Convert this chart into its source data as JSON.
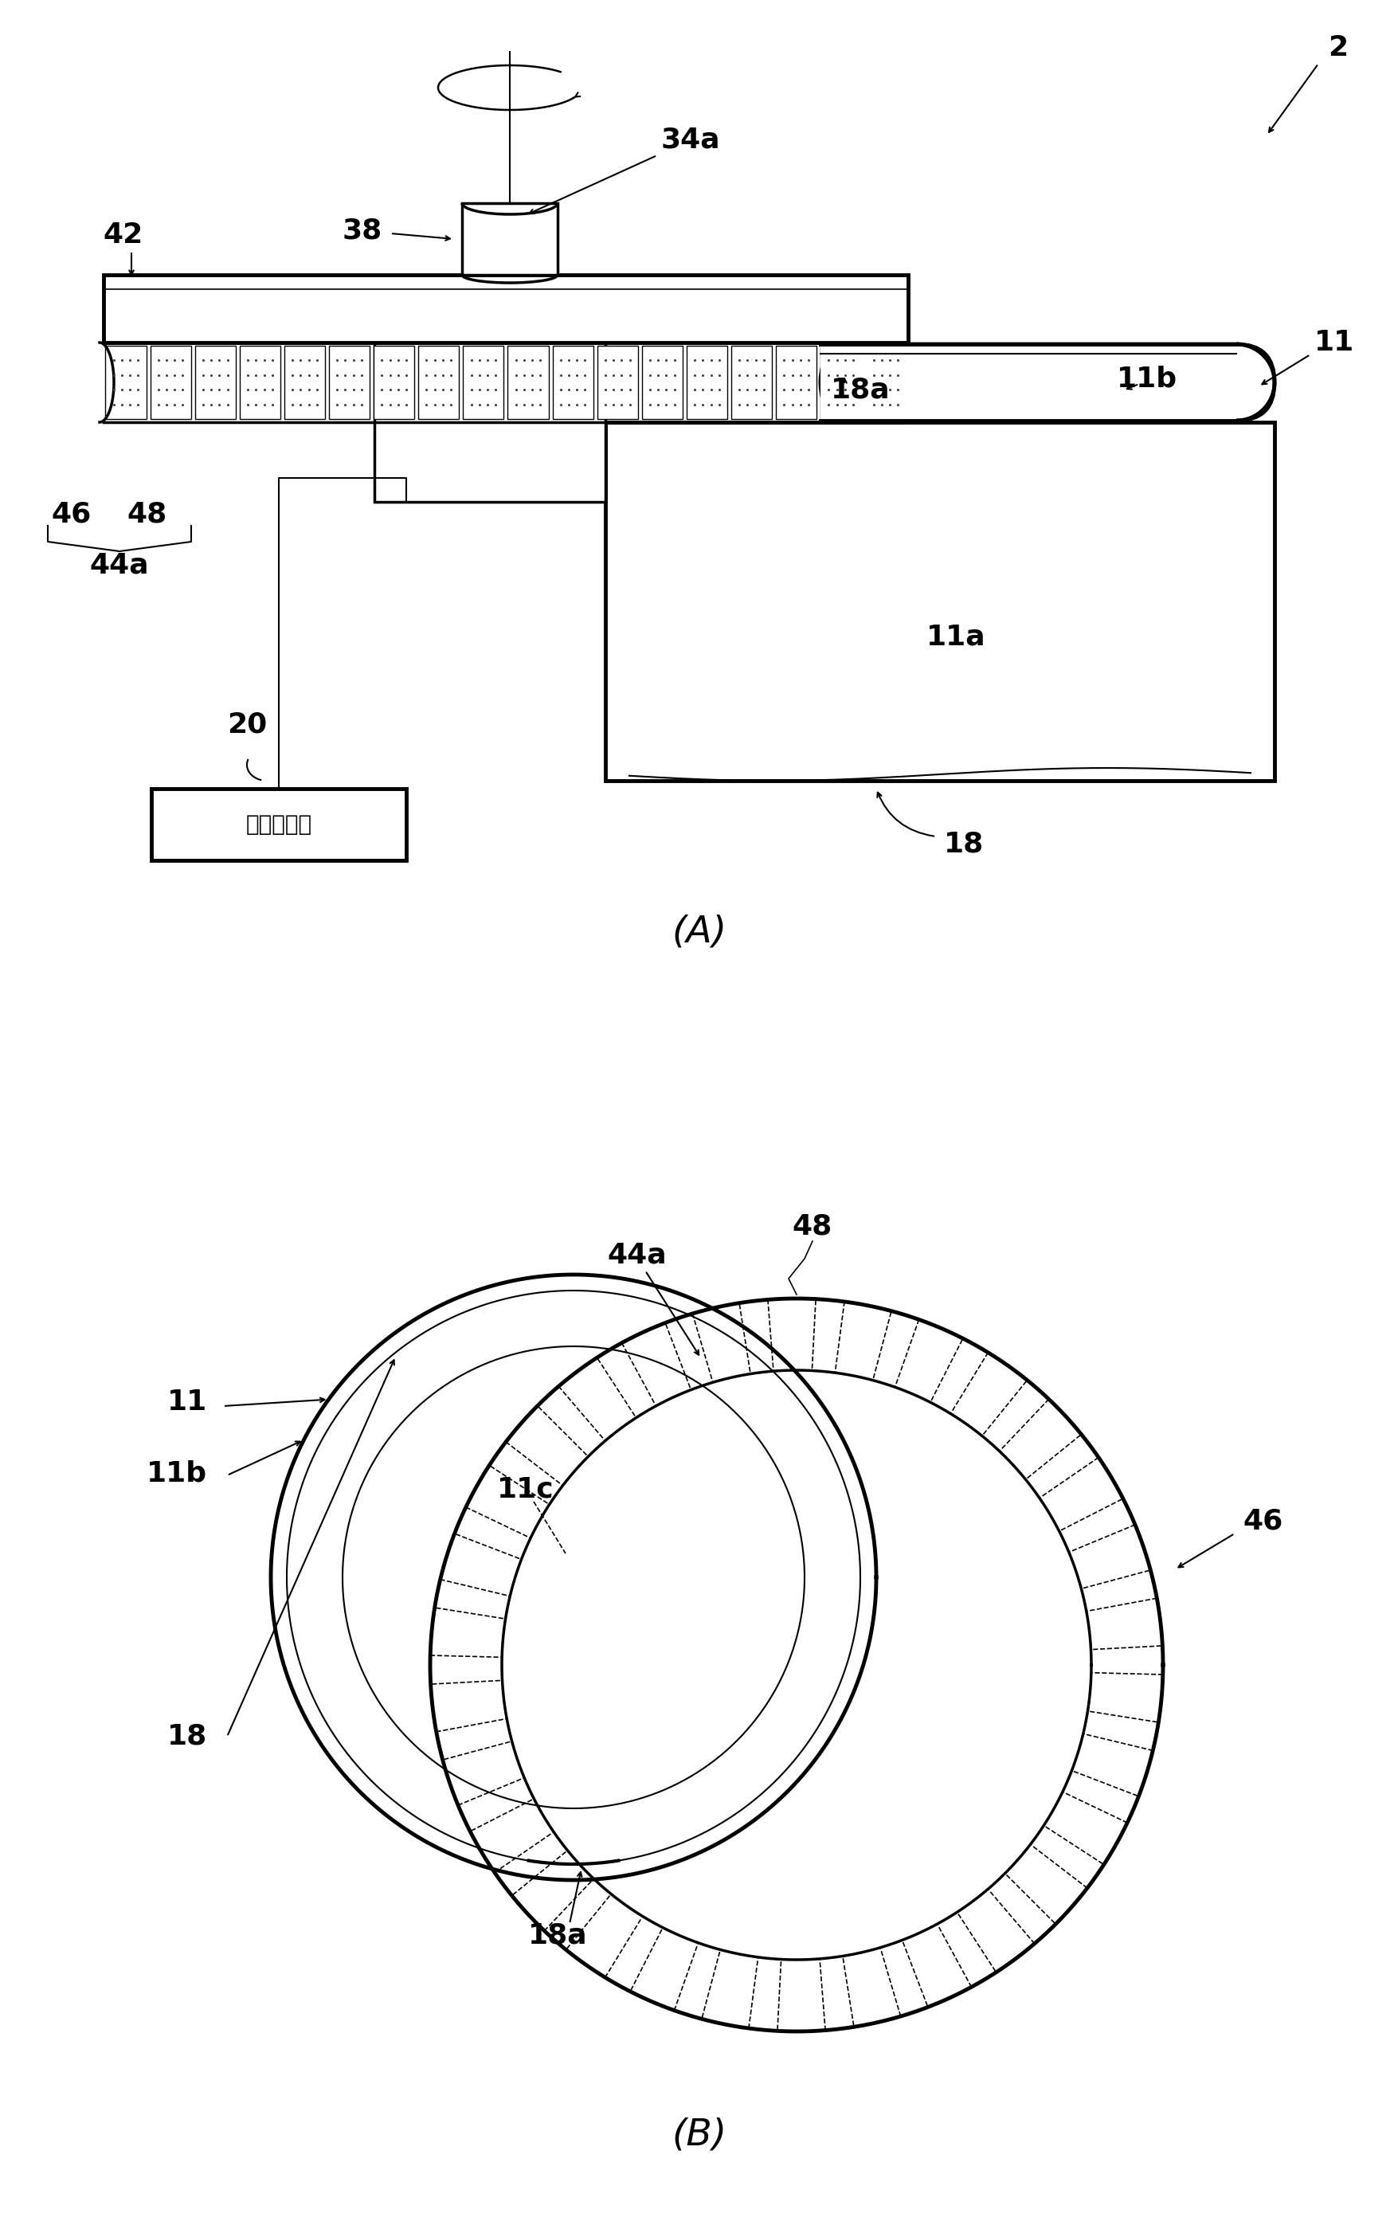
{
  "bg_color": "#ffffff",
  "fig_width": 17.56,
  "fig_height": 27.93,
  "label_A": "(A)",
  "label_B": "(B)",
  "box_text": "旋转驱动源"
}
